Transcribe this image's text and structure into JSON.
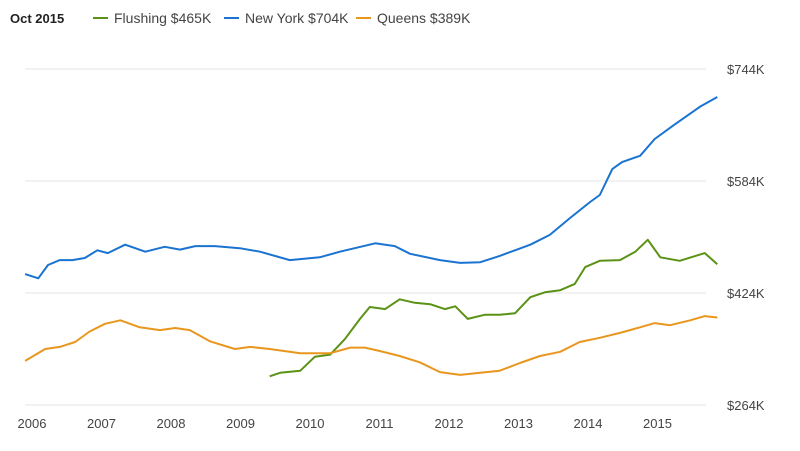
{
  "chart_data": {
    "type": "line",
    "title": "Oct 2015",
    "xlabel": "",
    "ylabel": "",
    "xlim": [
      2005.9,
      2015.86
    ],
    "ylim": [
      264,
      744
    ],
    "x_ticks": [
      "2006",
      "2007",
      "2008",
      "2009",
      "2010",
      "2011",
      "2012",
      "2013",
      "2014",
      "2015"
    ],
    "y_ticks": [
      {
        "value": 744,
        "label": "$744K"
      },
      {
        "value": 584,
        "label": "$584K"
      },
      {
        "value": 424,
        "label": "$424K"
      },
      {
        "value": 264,
        "label": "$264K"
      }
    ],
    "grid": true,
    "legend_position": "top-left",
    "series": [
      {
        "name": "Flushing",
        "legend": "Flushing $465K",
        "color": "#5a9216",
        "points": [
          [
            2009.42,
            305
          ],
          [
            2009.57,
            310
          ],
          [
            2009.86,
            313
          ],
          [
            2010.07,
            333
          ],
          [
            2010.29,
            336
          ],
          [
            2010.5,
            358
          ],
          [
            2010.72,
            387
          ],
          [
            2010.86,
            404
          ],
          [
            2011.08,
            401
          ],
          [
            2011.29,
            415
          ],
          [
            2011.51,
            410
          ],
          [
            2011.73,
            408
          ],
          [
            2011.94,
            401
          ],
          [
            2012.09,
            405
          ],
          [
            2012.27,
            387
          ],
          [
            2012.52,
            393
          ],
          [
            2012.73,
            393
          ],
          [
            2012.95,
            395
          ],
          [
            2013.17,
            418
          ],
          [
            2013.38,
            425
          ],
          [
            2013.6,
            428
          ],
          [
            2013.81,
            437
          ],
          [
            2013.96,
            461
          ],
          [
            2014.17,
            470
          ],
          [
            2014.46,
            471
          ],
          [
            2014.68,
            483
          ],
          [
            2014.86,
            500
          ],
          [
            2015.04,
            475
          ],
          [
            2015.32,
            470
          ],
          [
            2015.68,
            481
          ],
          [
            2015.86,
            465
          ]
        ]
      },
      {
        "name": "New York",
        "legend": "New York $704K",
        "color": "#1a73d0",
        "points": [
          [
            2005.9,
            451
          ],
          [
            2006.09,
            445
          ],
          [
            2006.23,
            464
          ],
          [
            2006.4,
            471
          ],
          [
            2006.58,
            471
          ],
          [
            2006.76,
            474
          ],
          [
            2006.94,
            485
          ],
          [
            2007.09,
            481
          ],
          [
            2007.34,
            493
          ],
          [
            2007.63,
            483
          ],
          [
            2007.91,
            490
          ],
          [
            2008.13,
            486
          ],
          [
            2008.35,
            491
          ],
          [
            2008.63,
            491
          ],
          [
            2008.99,
            488
          ],
          [
            2009.28,
            483
          ],
          [
            2009.71,
            471
          ],
          [
            2010.14,
            475
          ],
          [
            2010.43,
            483
          ],
          [
            2010.94,
            495
          ],
          [
            2011.22,
            491
          ],
          [
            2011.44,
            480
          ],
          [
            2011.87,
            471
          ],
          [
            2012.16,
            467
          ],
          [
            2012.45,
            468
          ],
          [
            2012.73,
            477
          ],
          [
            2012.95,
            485
          ],
          [
            2013.17,
            493
          ],
          [
            2013.45,
            507
          ],
          [
            2013.74,
            531
          ],
          [
            2014.03,
            554
          ],
          [
            2014.17,
            564
          ],
          [
            2014.35,
            601
          ],
          [
            2014.49,
            611
          ],
          [
            2014.75,
            620
          ],
          [
            2014.96,
            644
          ],
          [
            2015.25,
            665
          ],
          [
            2015.61,
            690
          ],
          [
            2015.86,
            704
          ]
        ]
      },
      {
        "name": "Queens",
        "legend": "Queens $389K",
        "color": "#e8961e",
        "points": [
          [
            2005.9,
            327
          ],
          [
            2006.19,
            344
          ],
          [
            2006.4,
            347
          ],
          [
            2006.62,
            354
          ],
          [
            2006.83,
            369
          ],
          [
            2007.05,
            380
          ],
          [
            2007.27,
            385
          ],
          [
            2007.55,
            375
          ],
          [
            2007.84,
            371
          ],
          [
            2008.06,
            374
          ],
          [
            2008.27,
            371
          ],
          [
            2008.56,
            355
          ],
          [
            2008.92,
            344
          ],
          [
            2009.14,
            347
          ],
          [
            2009.42,
            344
          ],
          [
            2009.86,
            338
          ],
          [
            2010.29,
            338
          ],
          [
            2010.58,
            346
          ],
          [
            2010.79,
            346
          ],
          [
            2011.01,
            341
          ],
          [
            2011.29,
            334
          ],
          [
            2011.58,
            325
          ],
          [
            2011.87,
            311
          ],
          [
            2012.16,
            307
          ],
          [
            2012.45,
            310
          ],
          [
            2012.73,
            313
          ],
          [
            2013.02,
            324
          ],
          [
            2013.31,
            334
          ],
          [
            2013.6,
            340
          ],
          [
            2013.88,
            354
          ],
          [
            2014.17,
            360
          ],
          [
            2014.46,
            367
          ],
          [
            2014.75,
            375
          ],
          [
            2014.96,
            381
          ],
          [
            2015.18,
            378
          ],
          [
            2015.47,
            385
          ],
          [
            2015.68,
            391
          ],
          [
            2015.86,
            389
          ]
        ]
      }
    ]
  }
}
